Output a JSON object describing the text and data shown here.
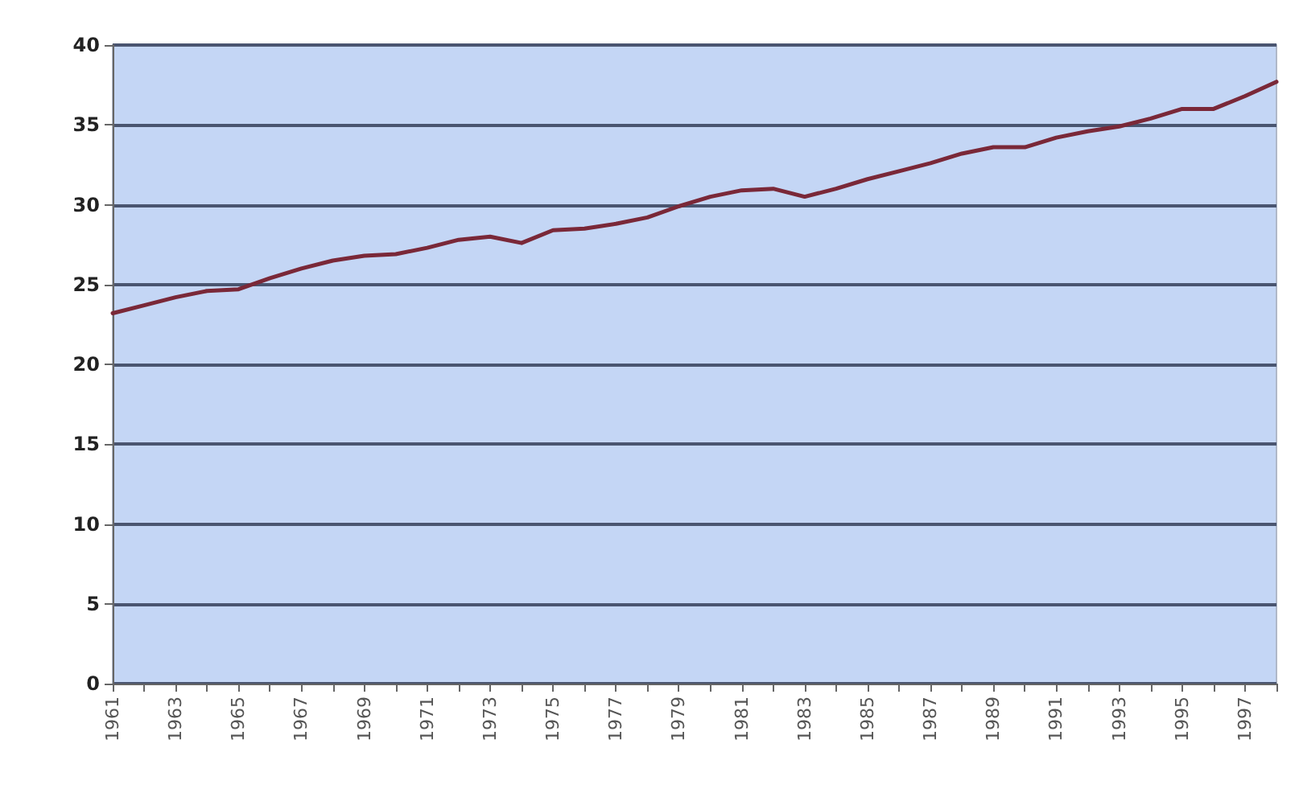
{
  "chart_data": {
    "type": "line",
    "categories": [
      "1961",
      null,
      "1963",
      null,
      "1965",
      null,
      "1967",
      null,
      "1969",
      null,
      "1971",
      null,
      "1973",
      null,
      "1975",
      null,
      "1977",
      null,
      "1979",
      null,
      "1981",
      null,
      "1983",
      null,
      "1985",
      null,
      "1987",
      null,
      "1989",
      null,
      "1991",
      null,
      "1993",
      null,
      "1995",
      null,
      "1997",
      null
    ],
    "series": [
      {
        "color": "#7a2838",
        "values": [
          23.2,
          23.7,
          24.2,
          24.6,
          24.7,
          25.4,
          26.0,
          26.5,
          26.8,
          26.9,
          27.3,
          27.8,
          28.0,
          27.6,
          28.4,
          28.5,
          28.8,
          29.2,
          29.9,
          30.5,
          30.9,
          31.0,
          30.5,
          31.0,
          31.6,
          32.1,
          32.6,
          33.2,
          33.6,
          33.6,
          34.2,
          34.6,
          34.9,
          35.4,
          36.0,
          36.0,
          36.8,
          37.7
        ]
      }
    ],
    "ylim": [
      0,
      40
    ],
    "yticks": [
      0,
      5,
      10,
      15,
      20,
      25,
      30,
      35,
      40
    ],
    "grid": "y",
    "marker": "none",
    "line_style": "solid"
  }
}
